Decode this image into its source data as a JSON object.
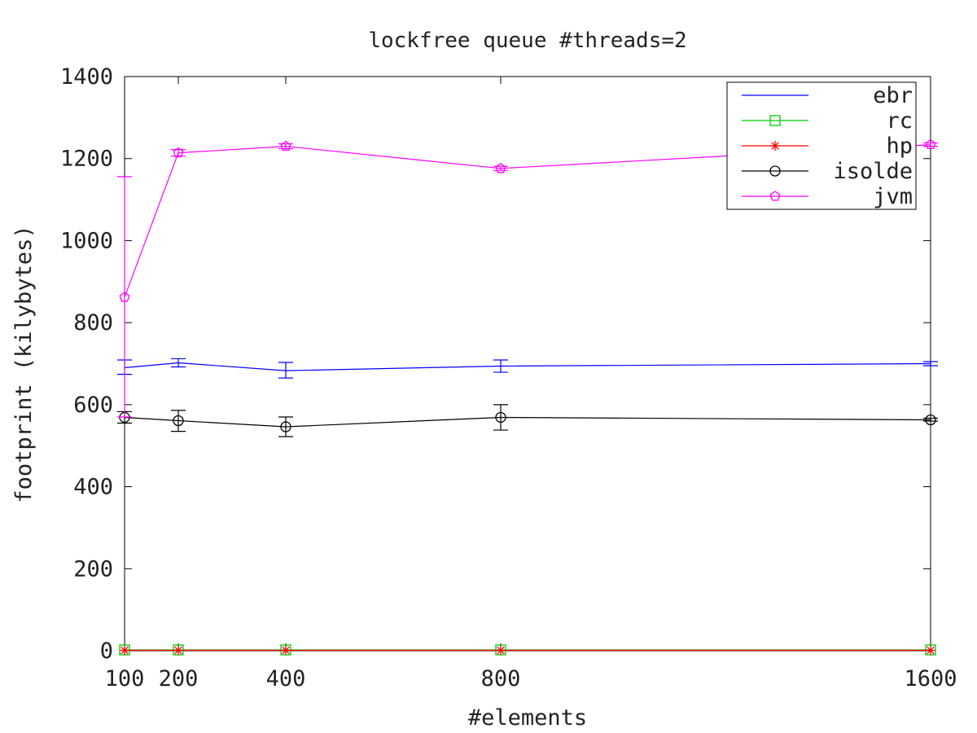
{
  "chart_data": {
    "type": "line",
    "title": "lockfree queue #threads=2",
    "xlabel": "#elements",
    "ylabel": "footprint (kilybytes)",
    "xlim": [
      100,
      1600
    ],
    "ylim": [
      0,
      1400
    ],
    "x_ticks": [
      100,
      200,
      400,
      800,
      1600
    ],
    "y_ticks": [
      0,
      200,
      400,
      600,
      800,
      1000,
      1200,
      1400
    ],
    "legend_position": "top-right",
    "grid": false,
    "series": [
      {
        "name": "ebr",
        "color": "#0000ff",
        "marker": "none",
        "x": [
          100,
          200,
          400,
          800,
          1600
        ],
        "y": [
          690,
          702,
          683,
          694,
          700
        ],
        "err_low": [
          674,
          692,
          665,
          679,
          695
        ],
        "err_high": [
          709,
          712,
          703,
          709,
          705
        ]
      },
      {
        "name": "rc",
        "color": "#00cc00",
        "marker": "square",
        "x": [
          100,
          200,
          400,
          800,
          1600
        ],
        "y": [
          2,
          2,
          2,
          2,
          2
        ],
        "err_low": [
          2,
          2,
          2,
          2,
          2
        ],
        "err_high": [
          2,
          2,
          2,
          2,
          2
        ]
      },
      {
        "name": "hp",
        "color": "#ff0000",
        "marker": "star",
        "x": [
          100,
          200,
          400,
          800,
          1600
        ],
        "y": [
          1,
          1,
          1,
          1,
          1
        ],
        "err_low": [
          1,
          1,
          1,
          1,
          1
        ],
        "err_high": [
          1,
          1,
          1,
          1,
          1
        ]
      },
      {
        "name": "isolde",
        "color": "#000000",
        "marker": "circle",
        "x": [
          100,
          200,
          400,
          800,
          1600
        ],
        "y": [
          569,
          561,
          546,
          569,
          563
        ],
        "err_low": [
          555,
          535,
          522,
          538,
          560
        ],
        "err_high": [
          583,
          586,
          570,
          600,
          567
        ]
      },
      {
        "name": "jvm",
        "color": "#ff00ff",
        "marker": "pentagon",
        "x": [
          100,
          200,
          400,
          800,
          1600
        ],
        "y": [
          862,
          1214,
          1230,
          1176,
          1234
        ],
        "err_low": [
          570,
          1206,
          1224,
          1171,
          1230
        ],
        "err_high": [
          1156,
          1222,
          1236,
          1181,
          1238
        ]
      }
    ]
  }
}
